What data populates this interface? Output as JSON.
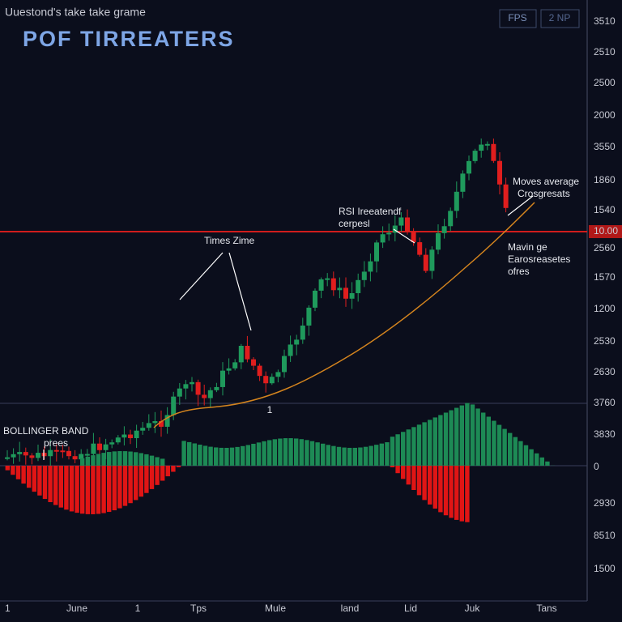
{
  "header": {
    "subtitle": "Uuestond's take take grame",
    "title": "POF TIRREATERS",
    "buttons": [
      "FPS",
      "2 NP"
    ]
  },
  "y_axis_labels": [
    "3510",
    "2510",
    "2500",
    "2000",
    "3550",
    "1860",
    "1540",
    "10.00",
    "2560",
    "1570",
    "1200",
    "2530",
    "2630",
    "3760",
    "3830",
    "0",
    "2930",
    "8510",
    "1500"
  ],
  "x_axis_labels": [
    "1",
    "June",
    "1",
    "Tps",
    "Mule",
    "land",
    "Lid",
    "Juk",
    "Tans"
  ],
  "annotations": {
    "time_zone": [
      "Times Zime"
    ],
    "rsi": [
      "RSI Ireeatendf",
      "cerpesl"
    ],
    "moving_average_cross": [
      "Moves average",
      "Crosgresats"
    ],
    "moving_average": [
      "Mavin ge",
      "Earosreasetes",
      "ofres"
    ],
    "bollinger": [
      "BOLLINGER BAND",
      "prees"
    ],
    "marker": [
      "1"
    ]
  }
}
